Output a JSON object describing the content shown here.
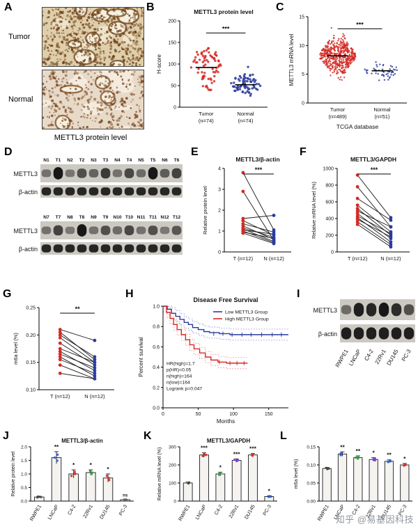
{
  "watermark": "知乎 @易基因科技",
  "panelA": {
    "letter": "A",
    "row_labels": [
      "Tumor",
      "Normal"
    ],
    "caption": "METTL3 protein level",
    "images": [
      {
        "name": "tumor-ihc",
        "seed": 11,
        "base": "#dfceac",
        "dot": "#6e4318",
        "dots": 650,
        "glands": 9,
        "patches": 5,
        "patch_color": "#f0e6cf"
      },
      {
        "name": "normal-ihc",
        "seed": 47,
        "base": "#e8dac9",
        "dot": "#7a4a22",
        "dots": 380,
        "glands": 5,
        "patches": 9,
        "patch_color": "#f5ece0"
      }
    ]
  },
  "panelD": {
    "letter": "D",
    "row_labels": [
      "METTL3",
      "β-actin"
    ],
    "blots": [
      {
        "lanes": [
          "N1",
          "T1",
          "N2",
          "T2",
          "N3",
          "T3",
          "N4",
          "T4",
          "N5",
          "T5",
          "N6",
          "T6"
        ],
        "mettl3": [
          0.3,
          0.95,
          0.28,
          0.55,
          0.4,
          0.7,
          0.3,
          0.6,
          0.35,
          0.95,
          0.45,
          0.65
        ],
        "actin": [
          0.85,
          0.85,
          0.85,
          0.85,
          0.85,
          0.85,
          0.85,
          0.85,
          0.85,
          0.85,
          0.85,
          0.85
        ]
      },
      {
        "lanes": [
          "N7",
          "T7",
          "N8",
          "T8",
          "N9",
          "T9",
          "N10",
          "T10",
          "N11",
          "T11",
          "N12",
          "T12"
        ],
        "mettl3": [
          0.3,
          0.65,
          0.25,
          0.95,
          0.3,
          0.55,
          0.35,
          0.6,
          0.3,
          0.55,
          0.25,
          0.5
        ],
        "actin": [
          0.85,
          0.85,
          0.85,
          0.85,
          0.85,
          0.85,
          0.85,
          0.85,
          0.85,
          0.85,
          0.85,
          0.85
        ]
      }
    ]
  },
  "panelI": {
    "letter": "I",
    "row_labels": [
      "METTL3",
      "β-actin"
    ],
    "lanes": [
      "RWPE1",
      "LNCaP",
      "C4-2",
      "22Rv1",
      "DU145",
      "PC-3"
    ],
    "mettl3": [
      0.35,
      0.9,
      0.85,
      0.95,
      0.8,
      0.55
    ],
    "actin": [
      0.9,
      0.9,
      0.9,
      0.9,
      0.9,
      0.9
    ]
  },
  "chart_data": [
    {
      "id": "B",
      "letter": "B",
      "type": "scatter",
      "title": "METTL3 protein level",
      "ylabel": "H-score",
      "ylim": [
        0,
        200
      ],
      "yticks": [
        0,
        50,
        100,
        150,
        200
      ],
      "ydp": 0,
      "sig": "***",
      "groups": [
        {
          "label": "Tumor",
          "sub": "(n=74)",
          "color": "#d42a24",
          "n": 74,
          "mean": 92,
          "sd": 28,
          "min": 40,
          "max": 185
        },
        {
          "label": "Normal",
          "sub": "(n=74)",
          "color": "#2b3a9e",
          "n": 74,
          "mean": 52,
          "sd": 14,
          "min": 24,
          "max": 115
        }
      ]
    },
    {
      "id": "C",
      "letter": "C",
      "type": "scatter",
      "title": "",
      "ylabel": "METTL3 mRNA level",
      "xlabel": "TCGA database",
      "ylim": [
        0,
        15
      ],
      "yticks": [
        0,
        5,
        10,
        15
      ],
      "ydp": 0,
      "sig": "***",
      "groups": [
        {
          "label": "Tumor",
          "sub": "(n=489)",
          "color": "#d42a24",
          "n": 489,
          "mean": 8.2,
          "sd": 1.5,
          "min": 4.0,
          "max": 13.6
        },
        {
          "label": "Normal",
          "sub": "(n=51)",
          "color": "#2b3a9e",
          "n": 51,
          "mean": 5.6,
          "sd": 0.8,
          "min": 3.9,
          "max": 7.6
        }
      ]
    },
    {
      "id": "E",
      "letter": "E",
      "type": "paired",
      "title": "METTL3/β-actin",
      "ylabel": "Relative protein level",
      "ylim": [
        0,
        4
      ],
      "yticks": [
        0,
        1,
        2,
        3,
        4
      ],
      "ydp": 0,
      "sig": "***",
      "xlabels": [
        "T (n=12)",
        "N (n=12)"
      ],
      "colors": [
        "#d42a24",
        "#2b3a9e"
      ],
      "t": [
        3.8,
        2.9,
        1.6,
        1.5,
        1.35,
        1.25,
        1.15,
        1.1,
        1.05,
        1.0,
        0.95,
        0.9
      ],
      "n": [
        1.05,
        0.55,
        1.75,
        0.8,
        0.95,
        0.6,
        0.7,
        0.5,
        0.85,
        0.45,
        0.65,
        0.4
      ]
    },
    {
      "id": "F",
      "letter": "F",
      "type": "paired",
      "title": "METTL3/GAPDH",
      "ylabel": "Relative mRNA level (%)",
      "ylim": [
        0,
        1000
      ],
      "yticks": [
        0,
        200,
        400,
        600,
        800,
        1000
      ],
      "ydp": 0,
      "sig": "***",
      "xlabels": [
        "T (n=12)",
        "N (n=12)"
      ],
      "colors": [
        "#d42a24",
        "#2b3a9e"
      ],
      "t": [
        920,
        780,
        640,
        560,
        520,
        490,
        460,
        430,
        410,
        390,
        360,
        330
      ],
      "n": [
        410,
        300,
        380,
        240,
        200,
        300,
        160,
        220,
        120,
        180,
        90,
        60
      ]
    },
    {
      "id": "G",
      "letter": "G",
      "type": "paired",
      "title": "",
      "ylabel": "m6a level (%)",
      "ylim": [
        0.1,
        0.25
      ],
      "yticks": [
        0.1,
        0.15,
        0.2,
        0.25
      ],
      "ydp": 2,
      "sig": "**",
      "xlabels": [
        "T (n=12)",
        "N (n=12)"
      ],
      "colors": [
        "#d42a24",
        "#2b3a9e"
      ],
      "t": [
        0.21,
        0.205,
        0.2,
        0.195,
        0.185,
        0.175,
        0.17,
        0.165,
        0.16,
        0.155,
        0.145,
        0.13
      ],
      "n": [
        0.19,
        0.155,
        0.16,
        0.15,
        0.145,
        0.15,
        0.135,
        0.14,
        0.125,
        0.13,
        0.12,
        0.12
      ]
    },
    {
      "id": "H",
      "letter": "H",
      "type": "km",
      "title": "Disease Free Survival",
      "xlabel": "Months",
      "ylabel": "Percent survival",
      "xlim": [
        0,
        178
      ],
      "xticks": [
        0,
        50,
        100,
        150
      ],
      "ylim": [
        0,
        1
      ],
      "yticks": [
        0,
        0.2,
        0.4,
        0.6,
        0.8,
        1
      ],
      "ydp": 1,
      "legend": [
        {
          "name": "Low METTL3 Group",
          "color": "#2b3a9e"
        },
        {
          "name": "High METTL3 Group",
          "color": "#d42a24"
        }
      ],
      "stats": [
        "HR(high)=1.7",
        "p(HR)=0.05",
        "n(high)=164",
        "n(low)=164",
        "Logrank p=0.047"
      ],
      "series": [
        {
          "name": "Low METTL3 Group",
          "color": "#2b3a9e",
          "steps": [
            [
              0,
              1
            ],
            [
              6,
              0.97
            ],
            [
              12,
              0.93
            ],
            [
              18,
              0.9
            ],
            [
              24,
              0.87
            ],
            [
              30,
              0.84
            ],
            [
              36,
              0.82
            ],
            [
              42,
              0.79
            ],
            [
              50,
              0.77
            ],
            [
              58,
              0.75
            ],
            [
              66,
              0.74
            ],
            [
              80,
              0.73
            ],
            [
              95,
              0.72
            ],
            [
              110,
              0.72
            ],
            [
              178,
              0.72
            ]
          ],
          "censor": [
            [
              72,
              0.73
            ],
            [
              85,
              0.73
            ],
            [
              98,
              0.72
            ],
            [
              112,
              0.72
            ],
            [
              125,
              0.72
            ],
            [
              140,
              0.72
            ],
            [
              155,
              0.72
            ],
            [
              168,
              0.72
            ]
          ]
        },
        {
          "name": "High METTL3 Group",
          "color": "#d42a24",
          "steps": [
            [
              0,
              1
            ],
            [
              5,
              0.94
            ],
            [
              10,
              0.88
            ],
            [
              15,
              0.82
            ],
            [
              20,
              0.77
            ],
            [
              26,
              0.72
            ],
            [
              32,
              0.67
            ],
            [
              38,
              0.62
            ],
            [
              44,
              0.58
            ],
            [
              52,
              0.54
            ],
            [
              60,
              0.5
            ],
            [
              68,
              0.47
            ],
            [
              78,
              0.45
            ],
            [
              90,
              0.44
            ],
            [
              120,
              0.44
            ]
          ],
          "censor": [
            [
              80,
              0.45
            ],
            [
              95,
              0.44
            ],
            [
              105,
              0.44
            ],
            [
              115,
              0.44
            ]
          ]
        }
      ]
    },
    {
      "id": "J",
      "letter": "J",
      "type": "bar",
      "title": "METTL3/β-actin",
      "ylabel": "Relative protein level",
      "ylim": [
        0,
        2
      ],
      "yticks": [
        0,
        0.5,
        1,
        1.5,
        2
      ],
      "ydp": 1,
      "categories": [
        "RWPE1",
        "LNCaP",
        "C4-2",
        "22Rv1",
        "DU145",
        "PC-3"
      ],
      "values": [
        0.15,
        1.6,
        1.0,
        1.05,
        0.85,
        0.05
      ],
      "errors": [
        0.03,
        0.22,
        0.15,
        0.1,
        0.15,
        0.02
      ],
      "sig": [
        "",
        "**",
        "*",
        "*",
        "*",
        "ns"
      ],
      "colors": [
        "#444444",
        "#2b5bd4",
        "#d42a24",
        "#2f9e44",
        "#d42a24",
        "#666666"
      ]
    },
    {
      "id": "K",
      "letter": "K",
      "type": "bar",
      "title": "METTL3/GAPDH",
      "ylabel": "Relative mRNA level (%)",
      "ylim": [
        0,
        300
      ],
      "yticks": [
        0,
        100,
        200,
        300
      ],
      "ydp": 0,
      "categories": [
        "RWPE1",
        "LNCaP",
        "C4-2",
        "22Rv1",
        "DU145",
        "PC-3"
      ],
      "values": [
        100,
        255,
        150,
        225,
        255,
        25
      ],
      "errors": [
        5,
        12,
        10,
        8,
        8,
        4
      ],
      "sig": [
        "",
        "***",
        "*",
        "***",
        "***",
        "*"
      ],
      "colors": [
        "#444444",
        "#d42a24",
        "#2f9e44",
        "#7b3fd4",
        "#d42a24",
        "#2b5bd4"
      ]
    },
    {
      "id": "L",
      "letter": "L",
      "type": "bar",
      "title": "",
      "ylabel": "m6a level (%)",
      "ylim": [
        0,
        0.15
      ],
      "yticks": [
        0,
        0.05,
        0.1,
        0.15
      ],
      "ydp": 2,
      "categories": [
        "RWPE1",
        "LNCaP",
        "C4-2",
        "22Rv1",
        "DU145",
        "PC-3"
      ],
      "values": [
        0.09,
        0.13,
        0.12,
        0.115,
        0.11,
        0.1
      ],
      "errors": [
        0.003,
        0.006,
        0.005,
        0.005,
        0.004,
        0.004
      ],
      "sig": [
        "",
        "**",
        "**",
        "*",
        "**",
        "*"
      ],
      "colors": [
        "#444444",
        "#2b5bd4",
        "#2f9e44",
        "#7b3fd4",
        "#2b5bd4",
        "#d42a24"
      ]
    }
  ]
}
